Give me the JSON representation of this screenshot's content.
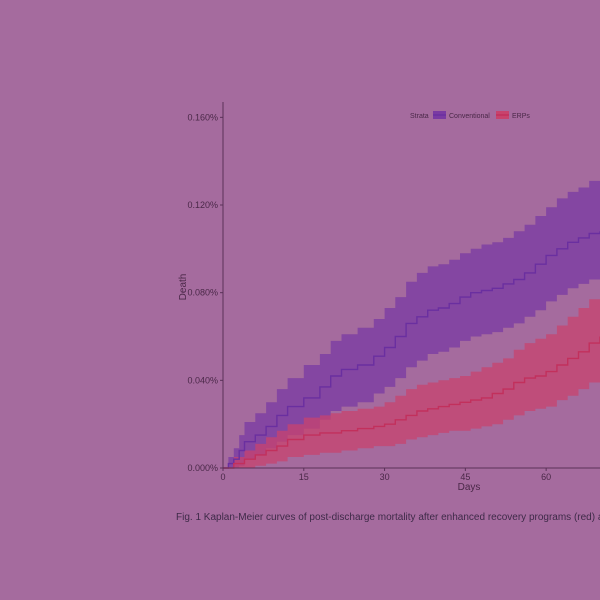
{
  "colors": {
    "background": "#a56b9e",
    "axis": "#5a3158",
    "text": "#4a2848",
    "conventional_line": "#6a2fa0",
    "conventional_band": "#7a3aa3",
    "erps_line": "#c2305c",
    "erps_band": "#c8436d"
  },
  "caption": "Fig. 1  Kaplan-Meier curves of post-discharge mortality after enhanced recovery programs (red) a",
  "chart_data": {
    "type": "line",
    "step": true,
    "xlabel": "Days",
    "ylabel": "Death",
    "xlim": [
      0,
      70
    ],
    "ylim": [
      0,
      0.167
    ],
    "x_ticks": [
      0,
      15,
      30,
      45,
      60
    ],
    "x_tick_labels": [
      "0",
      "15",
      "30",
      "45",
      "60"
    ],
    "y_ticks": [
      0,
      0.04,
      0.08,
      0.12,
      0.16
    ],
    "y_tick_labels": [
      "0.000%",
      "0.040%",
      "0.080%",
      "0.120%",
      "0.160%"
    ],
    "legend": {
      "title": "Strata",
      "position": "top",
      "entries": [
        "Conventional",
        "ERPs"
      ]
    },
    "grid": false,
    "series": [
      {
        "name": "Conventional",
        "color": "#6a2fa0",
        "x": [
          0,
          1,
          2,
          3,
          4,
          6,
          8,
          10,
          12,
          15,
          18,
          20,
          22,
          25,
          28,
          30,
          32,
          34,
          36,
          38,
          40,
          42,
          44,
          46,
          48,
          50,
          52,
          54,
          56,
          58,
          60,
          62,
          64,
          66,
          68,
          70
        ],
        "y": [
          0,
          0.002,
          0.004,
          0.008,
          0.012,
          0.015,
          0.019,
          0.024,
          0.028,
          0.032,
          0.037,
          0.042,
          0.045,
          0.047,
          0.051,
          0.055,
          0.06,
          0.066,
          0.069,
          0.072,
          0.073,
          0.075,
          0.078,
          0.08,
          0.081,
          0.082,
          0.084,
          0.086,
          0.089,
          0.093,
          0.097,
          0.1,
          0.103,
          0.105,
          0.107,
          0.108
        ],
        "lower": [
          0,
          0,
          0,
          0.001,
          0.004,
          0.006,
          0.009,
          0.012,
          0.015,
          0.018,
          0.022,
          0.026,
          0.028,
          0.03,
          0.034,
          0.037,
          0.041,
          0.046,
          0.049,
          0.052,
          0.053,
          0.055,
          0.058,
          0.06,
          0.061,
          0.062,
          0.064,
          0.066,
          0.069,
          0.072,
          0.076,
          0.079,
          0.082,
          0.084,
          0.086,
          0.087
        ],
        "upper": [
          0,
          0.005,
          0.009,
          0.015,
          0.021,
          0.025,
          0.03,
          0.036,
          0.041,
          0.047,
          0.052,
          0.058,
          0.061,
          0.064,
          0.068,
          0.073,
          0.078,
          0.085,
          0.089,
          0.092,
          0.093,
          0.095,
          0.098,
          0.1,
          0.102,
          0.103,
          0.105,
          0.108,
          0.111,
          0.115,
          0.119,
          0.123,
          0.126,
          0.128,
          0.131,
          0.132
        ]
      },
      {
        "name": "ERPs",
        "color": "#c2305c",
        "x": [
          0,
          2,
          4,
          6,
          8,
          10,
          12,
          15,
          18,
          20,
          22,
          25,
          28,
          30,
          32,
          34,
          36,
          38,
          40,
          42,
          44,
          46,
          48,
          50,
          52,
          54,
          56,
          58,
          60,
          62,
          64,
          66,
          68,
          70
        ],
        "y": [
          0,
          0.002,
          0.004,
          0.006,
          0.008,
          0.01,
          0.013,
          0.015,
          0.016,
          0.016,
          0.017,
          0.018,
          0.019,
          0.02,
          0.022,
          0.024,
          0.026,
          0.027,
          0.028,
          0.029,
          0.03,
          0.031,
          0.032,
          0.034,
          0.036,
          0.039,
          0.041,
          0.042,
          0.044,
          0.047,
          0.05,
          0.053,
          0.057,
          0.06
        ],
        "lower": [
          0,
          0,
          0,
          0.001,
          0.002,
          0.003,
          0.005,
          0.006,
          0.007,
          0.007,
          0.008,
          0.009,
          0.01,
          0.01,
          0.011,
          0.013,
          0.014,
          0.015,
          0.016,
          0.017,
          0.017,
          0.018,
          0.019,
          0.02,
          0.022,
          0.024,
          0.026,
          0.027,
          0.028,
          0.031,
          0.033,
          0.036,
          0.039,
          0.042
        ],
        "upper": [
          0,
          0.005,
          0.008,
          0.011,
          0.014,
          0.017,
          0.02,
          0.023,
          0.024,
          0.025,
          0.026,
          0.027,
          0.028,
          0.03,
          0.033,
          0.036,
          0.038,
          0.039,
          0.04,
          0.041,
          0.042,
          0.044,
          0.046,
          0.048,
          0.05,
          0.054,
          0.057,
          0.059,
          0.061,
          0.065,
          0.069,
          0.073,
          0.077,
          0.08
        ]
      }
    ]
  }
}
